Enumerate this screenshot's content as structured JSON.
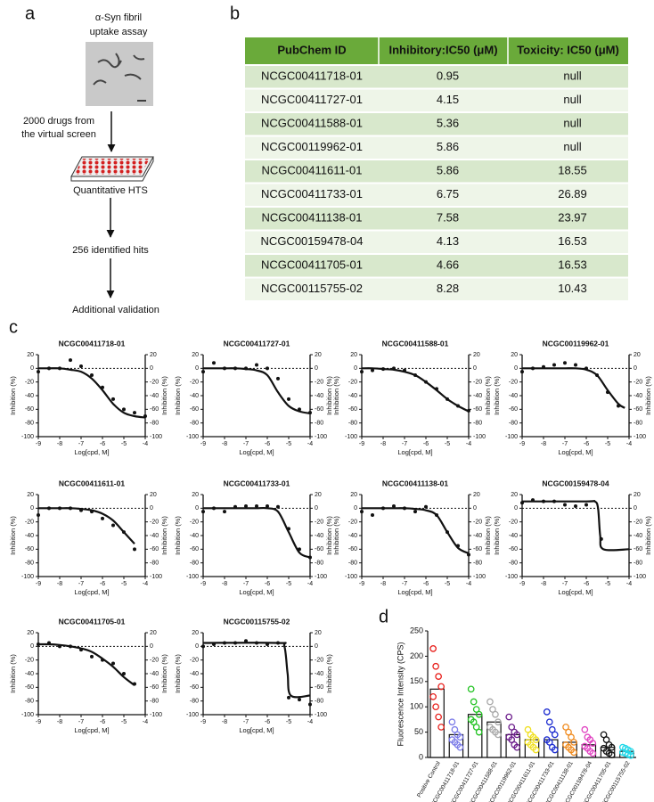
{
  "panel_a": {
    "letter": "a",
    "assay": [
      "α-Syn fibril",
      "uptake assay"
    ],
    "steps": [
      [
        "2000 drugs from",
        "the virtual screen"
      ],
      "Quantitative HTS",
      "256 identified hits",
      "Additional validation"
    ]
  },
  "panel_b": {
    "letter": "b",
    "header": [
      "PubChem ID",
      "Inhibitory:IC50 (μM)",
      "Toxicity: IC50 (μM)"
    ],
    "rows": [
      [
        "NCGC00411718-01",
        0.95,
        "null"
      ],
      [
        "NCGC00411727-01",
        4.15,
        "null"
      ],
      [
        "NCGC00411588-01",
        5.36,
        "null"
      ],
      [
        "NCGC00119962-01",
        5.86,
        "null"
      ],
      [
        "NCGC00411611-01",
        5.86,
        18.55
      ],
      [
        "NCGC00411733-01",
        6.75,
        26.89
      ],
      [
        "NCGC00411138-01",
        7.58,
        23.97
      ],
      [
        "NCGC00159478-04",
        4.13,
        16.53
      ],
      [
        "NCGC00411705-01",
        4.66,
        16.53
      ],
      [
        "NCGC00115755-02",
        8.28,
        10.43
      ]
    ]
  },
  "panel_c_letter": "c",
  "panel_d_letter": "d",
  "chart_data": [
    {
      "type": "scatter",
      "title": "NCGC00411718-01",
      "xlabel": "Log[cpd, M]",
      "ylabel": "Inhibition (%)",
      "y2label": "Inhibition (%)",
      "x": [
        -9,
        -8.5,
        -8,
        -7.5,
        -7,
        -6.5,
        -6,
        -5.5,
        -5,
        -4.5,
        -4
      ],
      "values": [
        -5,
        0,
        0,
        12,
        3,
        -10,
        -28,
        -45,
        -60,
        -65,
        -70
      ],
      "fit_x": [
        -9,
        -8.5,
        -8,
        -7.5,
        -7,
        -6.5,
        -6,
        -5.5,
        -5,
        -4.5,
        -4
      ],
      "fit_values": [
        0,
        0,
        0,
        -2,
        -5,
        -15,
        -32,
        -52,
        -65,
        -70,
        -72
      ],
      "xlim": [
        -9,
        -4
      ],
      "xticks": [
        -9,
        -8,
        -7,
        -6,
        -5,
        -4
      ],
      "ylim": [
        -100,
        20
      ],
      "yticks": [
        -100,
        -80,
        -60,
        -40,
        -20,
        0,
        20
      ],
      "y2lim": [
        -100,
        20
      ],
      "y2ticks": [
        -100,
        -80,
        -60,
        -40,
        -20,
        0,
        20
      ]
    },
    {
      "type": "scatter",
      "title": "NCGC00411727-01",
      "xlabel": "Log[cpd, M]",
      "ylabel": "Inhibition (%)",
      "y2label": "Inhibition (%)",
      "x": [
        -9,
        -8.5,
        -8,
        -7.5,
        -7,
        -6.5,
        -6,
        -5.5,
        -5,
        -4.5,
        -4
      ],
      "values": [
        -5,
        8,
        0,
        0,
        0,
        5,
        0,
        -15,
        -45,
        -60,
        -65
      ],
      "fit_x": [
        -9,
        -8.5,
        -8,
        -7.5,
        -7,
        -6.5,
        -6,
        -5.5,
        -5,
        -4.5,
        -4
      ],
      "fit_values": [
        0,
        0,
        0,
        0,
        -1,
        -3,
        -10,
        -35,
        -55,
        -63,
        -66
      ],
      "xlim": [
        -9,
        -4
      ],
      "xticks": [
        -9,
        -8,
        -7,
        -6,
        -5,
        -4
      ],
      "ylim": [
        -100,
        20
      ],
      "yticks": [
        -100,
        -80,
        -60,
        -40,
        -20,
        0,
        20
      ],
      "y2lim": [
        -100,
        20
      ],
      "y2ticks": [
        -100,
        -80,
        -60,
        -40,
        -20,
        0,
        20
      ]
    },
    {
      "type": "scatter",
      "title": "NCGC00411588-01",
      "xlabel": "Log[cpd, M]",
      "ylabel": "Inhibition (%)",
      "y2label": "Inhibition (%)",
      "x": [
        -9,
        -8.5,
        -8,
        -7.5,
        -7,
        -6.5,
        -6,
        -5.5,
        -5,
        -4.5,
        -4
      ],
      "values": [
        -5,
        -3,
        -1,
        0,
        -3,
        -10,
        -20,
        -30,
        -45,
        -55,
        -62
      ],
      "fit_x": [
        -9,
        -8.5,
        -8,
        -7.5,
        -7,
        -6.5,
        -6,
        -5.5,
        -5,
        -4.5,
        -4
      ],
      "fit_values": [
        0,
        0,
        -1,
        -2,
        -5,
        -10,
        -20,
        -32,
        -45,
        -55,
        -63
      ],
      "xlim": [
        -9,
        -4
      ],
      "xticks": [
        -9,
        -8,
        -7,
        -6,
        -5,
        -4
      ],
      "ylim": [
        -100,
        20
      ],
      "yticks": [
        -100,
        -80,
        -60,
        -40,
        -20,
        0,
        20
      ],
      "y2lim": [
        -100,
        20
      ],
      "y2ticks": [
        -100,
        -80,
        -60,
        -40,
        -20,
        0,
        20
      ]
    },
    {
      "type": "scatter",
      "title": "NCGC00119962-01",
      "xlabel": "Log[cpd, M]",
      "ylabel": "Inhibition (%)",
      "y2label": "Inhibition (%)",
      "x": [
        -9,
        -8.5,
        -8,
        -7.5,
        -7,
        -6.5,
        -6,
        -5.5,
        -5,
        -4.5
      ],
      "values": [
        -5,
        0,
        2,
        5,
        8,
        5,
        0,
        -10,
        -35,
        -55
      ],
      "fit_x": [
        -9,
        -8.5,
        -8,
        -7.5,
        -7,
        -6.5,
        -6,
        -5.5,
        -5,
        -4.5,
        -4.2
      ],
      "fit_values": [
        0,
        0,
        0,
        0,
        0,
        0,
        -2,
        -10,
        -32,
        -52,
        -58
      ],
      "xlim": [
        -9,
        -4
      ],
      "xticks": [
        -9,
        -8,
        -7,
        -6,
        -5,
        -4
      ],
      "ylim": [
        -100,
        20
      ],
      "yticks": [
        -100,
        -80,
        -60,
        -40,
        -20,
        0,
        20
      ],
      "y2lim": [
        -100,
        20
      ],
      "y2ticks": [
        -100,
        -80,
        -60,
        -40,
        -20,
        0,
        20
      ]
    },
    {
      "type": "scatter",
      "title": "NCGC00411611-01",
      "xlabel": "Log[cpd, M]",
      "ylabel": "Inhibition (%)",
      "y2label": "Inhibition (%)",
      "x": [
        -9,
        -8.5,
        -8,
        -7.5,
        -7,
        -6.5,
        -6,
        -5.5,
        -5,
        -4.5
      ],
      "values": [
        -10,
        0,
        0,
        0,
        -3,
        -5,
        -15,
        -25,
        -35,
        -60
      ],
      "fit_x": [
        -9,
        -8.5,
        -8,
        -7.5,
        -7,
        -6.5,
        -6,
        -5.5,
        -5,
        -4.5
      ],
      "fit_values": [
        0,
        0,
        0,
        0,
        -1,
        -3,
        -8,
        -18,
        -35,
        -52
      ],
      "xlim": [
        -9,
        -4
      ],
      "xticks": [
        -9,
        -8,
        -7,
        -6,
        -5,
        -4
      ],
      "ylim": [
        -100,
        20
      ],
      "yticks": [
        -100,
        -80,
        -60,
        -40,
        -20,
        0,
        20
      ],
      "y2lim": [
        -100,
        20
      ],
      "y2ticks": [
        -100,
        -80,
        -60,
        -40,
        -20,
        0,
        20
      ]
    },
    {
      "type": "scatter",
      "title": "NCGC00411733-01",
      "xlabel": "Log[cpd, M]",
      "ylabel": "Inhibition (%)",
      "y2label": "Inhibition (%)",
      "x": [
        -9,
        -8.5,
        -8,
        -7.5,
        -7,
        -6.5,
        -6,
        -5.5,
        -5,
        -4.5,
        -4
      ],
      "values": [
        -5,
        0,
        -5,
        2,
        3,
        3,
        3,
        2,
        -30,
        -60,
        -72
      ],
      "fit_x": [
        -9,
        -8.5,
        -8,
        -7.5,
        -7,
        -6.5,
        -6,
        -5.5,
        -5,
        -4.5,
        -4
      ],
      "fit_values": [
        0,
        0,
        0,
        0,
        0,
        0,
        0,
        -5,
        -35,
        -65,
        -72
      ],
      "xlim": [
        -9,
        -4
      ],
      "xticks": [
        -9,
        -8,
        -7,
        -6,
        -5,
        -4
      ],
      "ylim": [
        -100,
        20
      ],
      "yticks": [
        -100,
        -80,
        -60,
        -40,
        -20,
        0,
        20
      ],
      "y2lim": [
        -100,
        20
      ],
      "y2ticks": [
        -100,
        -80,
        -60,
        -40,
        -20,
        0,
        20
      ]
    },
    {
      "type": "scatter",
      "title": "NCGC00411138-01",
      "xlabel": "Log[cpd, M]",
      "ylabel": "Inhibition (%)",
      "y2label": "Inhibition (%)",
      "x": [
        -9,
        -8.5,
        -8,
        -7.5,
        -7,
        -6.5,
        -6,
        -5.5,
        -5,
        -4.5,
        -4
      ],
      "values": [
        -5,
        -10,
        0,
        3,
        0,
        -5,
        2,
        -10,
        -35,
        -55,
        -68
      ],
      "fit_x": [
        -9,
        -8.5,
        -8,
        -7.5,
        -7,
        -6.5,
        -6,
        -5.5,
        -5,
        -4.5,
        -4
      ],
      "fit_values": [
        0,
        0,
        0,
        0,
        0,
        -1,
        -3,
        -10,
        -35,
        -58,
        -66
      ],
      "xlim": [
        -9,
        -4
      ],
      "xticks": [
        -9,
        -8,
        -7,
        -6,
        -5,
        -4
      ],
      "ylim": [
        -100,
        20
      ],
      "yticks": [
        -100,
        -80,
        -60,
        -40,
        -20,
        0,
        20
      ],
      "y2lim": [
        -100,
        20
      ],
      "y2ticks": [
        -100,
        -80,
        -60,
        -40,
        -20,
        0,
        20
      ]
    },
    {
      "type": "scatter",
      "title": "NCGC00159478-04",
      "xlabel": "Log[cpd, M]",
      "ylabel": "Inhibition (%)",
      "y2label": "Inhibition (%)",
      "x": [
        -9,
        -8.5,
        -8,
        -7.5,
        -7,
        -6.5,
        -6,
        -5.3
      ],
      "values": [
        8,
        12,
        10,
        10,
        5,
        3,
        5,
        -45
      ],
      "fit_x": [
        -9,
        -6,
        -5.6,
        -5.45,
        -5.35,
        -5.2,
        -4
      ],
      "fit_values": [
        10,
        10,
        10,
        0,
        -40,
        -60,
        -60
      ],
      "xlim": [
        -9,
        -4
      ],
      "xticks": [
        -9,
        -8,
        -7,
        -6,
        -5,
        -4
      ],
      "ylim": [
        -100,
        20
      ],
      "yticks": [
        -100,
        -80,
        -60,
        -40,
        -20,
        0,
        20
      ],
      "y2lim": [
        -100,
        20
      ],
      "y2ticks": [
        -100,
        -80,
        -60,
        -40,
        -20,
        0,
        20
      ]
    },
    {
      "type": "scatter",
      "title": "NCGC00411705-01",
      "xlabel": "Log[cpd, M]",
      "ylabel": "Inhibition (%)",
      "y2label": "Inhibition (%)",
      "x": [
        -9,
        -8.5,
        -8,
        -7.5,
        -7,
        -6.5,
        -6,
        -5.5,
        -5,
        -4.5
      ],
      "values": [
        3,
        5,
        0,
        0,
        -5,
        -15,
        -20,
        -25,
        -40,
        -55
      ],
      "fit_x": [
        -9,
        -8.5,
        -8,
        -7.5,
        -7,
        -6.5,
        -6,
        -5.5,
        -5,
        -4.5
      ],
      "fit_values": [
        3,
        3,
        2,
        0,
        -3,
        -8,
        -18,
        -30,
        -45,
        -57
      ],
      "xlim": [
        -9,
        -4
      ],
      "xticks": [
        -9,
        -8,
        -7,
        -6,
        -5,
        -4
      ],
      "ylim": [
        -100,
        20
      ],
      "yticks": [
        -100,
        -80,
        -60,
        -40,
        -20,
        0,
        20
      ],
      "y2lim": [
        -100,
        20
      ],
      "y2ticks": [
        -100,
        -80,
        -60,
        -40,
        -20,
        0,
        20
      ]
    },
    {
      "type": "scatter",
      "title": "NCGC00115755-02",
      "xlabel": "Log[cpd, M]",
      "ylabel": "Inhibition (%)",
      "y2label": "Inhibition (%)",
      "x": [
        -9,
        -8.5,
        -8,
        -7.5,
        -7,
        -6.5,
        -6,
        -5.5,
        -5,
        -4.5,
        -4
      ],
      "values": [
        0,
        3,
        5,
        5,
        8,
        5,
        3,
        5,
        -75,
        -78,
        -85
      ],
      "fit_x": [
        -9,
        -5.5,
        -5.2,
        -5.05,
        -4.9,
        -4
      ],
      "fit_values": [
        5,
        5,
        0,
        -40,
        -72,
        -72
      ],
      "xlim": [
        -9,
        -4
      ],
      "xticks": [
        -9,
        -8,
        -7,
        -6,
        -5,
        -4
      ],
      "ylim": [
        -100,
        20
      ],
      "yticks": [
        -100,
        -80,
        -60,
        -40,
        -20,
        0,
        20
      ],
      "y2lim": [
        -100,
        20
      ],
      "y2ticks": [
        -100,
        -80,
        -60,
        -40,
        -20,
        0,
        20
      ]
    },
    {
      "type": "bar",
      "ylabel": "Fluorescence Intensity (CPS)",
      "categories": [
        "Positive Control",
        "NCGC00411718-01",
        "NCGC00411727-01",
        "NCGC00411588-01",
        "NCGC00119962-01",
        "NCGC00411611-01",
        "NCGC00411733-01",
        "NCGC00411138-01",
        "NCGC00159478-04",
        "NCGC00411705-01",
        "NCGC00115755-02"
      ],
      "values": [
        135,
        45,
        85,
        70,
        45,
        35,
        35,
        30,
        25,
        20,
        12
      ],
      "colors": [
        "#e8201c",
        "#7b7be8",
        "#22c322",
        "#a8a8a8",
        "#6a1a8a",
        "#f0e020",
        "#1c2cd0",
        "#f08a1c",
        "#e040c0",
        "#111111",
        "#22d8e8"
      ],
      "points": [
        [
          215,
          180,
          160,
          140,
          120,
          100,
          80,
          60
        ],
        [
          70,
          55,
          45,
          40,
          35,
          30,
          25,
          20
        ],
        [
          135,
          110,
          95,
          85,
          75,
          70,
          60,
          50
        ],
        [
          110,
          95,
          85,
          70,
          60,
          55,
          50,
          45
        ],
        [
          80,
          60,
          50,
          45,
          40,
          35,
          25,
          20
        ],
        [
          55,
          45,
          40,
          35,
          30,
          25,
          20,
          15
        ],
        [
          90,
          70,
          55,
          45,
          35,
          30,
          20,
          15
        ],
        [
          60,
          50,
          40,
          30,
          25,
          20,
          15,
          10
        ],
        [
          55,
          40,
          35,
          28,
          22,
          18,
          12,
          8
        ],
        [
          45,
          35,
          25,
          20,
          18,
          12,
          8,
          5
        ],
        [
          20,
          18,
          15,
          12,
          10,
          8,
          6,
          4
        ]
      ],
      "ylim": [
        0,
        250
      ],
      "yticks": [
        0,
        50,
        100,
        150,
        200,
        250
      ]
    }
  ]
}
